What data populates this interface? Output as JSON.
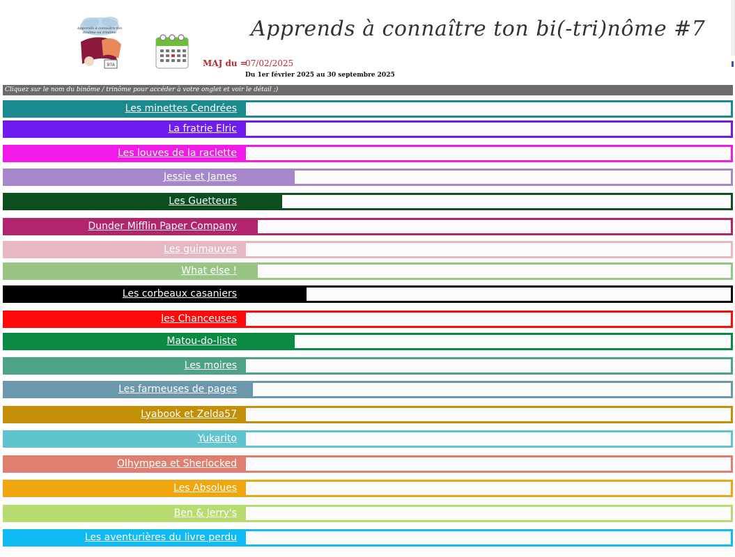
{
  "header": {
    "title": "Apprends à connaître ton bi(-tri)nôme #7",
    "maj_label": "MAJ du =",
    "maj_date": "07/02/2025",
    "period": "Du 1er février 2025 au 30 septembre 2025",
    "logo_text": "Apprends à connaître ton binôme ou trinôme"
  },
  "instructions": "Cliquez sur le nom du binôme / trinôme pour accéder à votre onglet et voir le détail ;)",
  "teams": [
    {
      "name": "Les minettes Cendrées",
      "color": "#1a8a8f",
      "progress": 0
    },
    {
      "name": "La fratrie Elric",
      "color": "#6f1cf0",
      "progress": 0
    },
    {
      "name": "Les louves de la raclette",
      "color": "#f21ae6",
      "progress": 0
    },
    {
      "name": "Jessie et James",
      "color": "#a687cc",
      "progress": 0.1
    },
    {
      "name": "Les Guetteurs",
      "color": "#0b4f1f",
      "progress": 0.075
    },
    {
      "name": "Dunder Mifflin Paper Company",
      "color": "#b2246d",
      "progress": 0.025
    },
    {
      "name": "Les guimauves",
      "color": "#e8b8c2",
      "progress": 0
    },
    {
      "name": "What else !",
      "color": "#98c585",
      "progress": 0.025
    },
    {
      "name": "Les corbeaux casaniers",
      "color": "#000000",
      "progress": 0.125
    },
    {
      "name": "les Chanceuses",
      "color": "#ff0a0a",
      "progress": 0
    },
    {
      "name": "Matou-do-liste",
      "color": "#0a8a42",
      "progress": 0.1
    },
    {
      "name": "Les moires",
      "color": "#4ea386",
      "progress": 0
    },
    {
      "name": "Les farmeuses de pages",
      "color": "#6b98ac",
      "progress": 0.015
    },
    {
      "name": "Lyabook et Zelda57",
      "color": "#c28f06",
      "progress": 0
    },
    {
      "name": "Yukarito",
      "color": "#5fc4cd",
      "progress": 0
    },
    {
      "name": "Olhympea et Sherlocked",
      "color": "#e07f70",
      "progress": 0
    },
    {
      "name": "Les Absolues",
      "color": "#f0a70f",
      "progress": 0
    },
    {
      "name": "Ben & Jerry's",
      "color": "#b6dc6f",
      "progress": 0
    },
    {
      "name": "Les aventurières du livre perdu",
      "color": "#0fbaf5",
      "progress": 0
    }
  ]
}
